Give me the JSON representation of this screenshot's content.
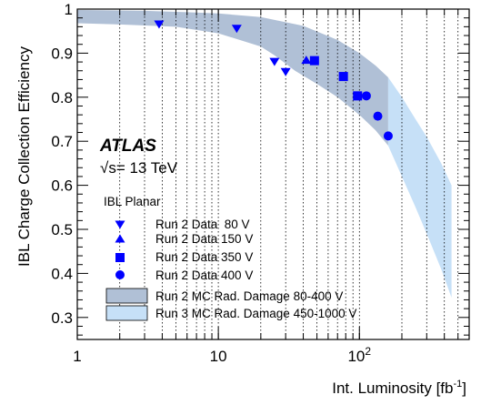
{
  "chart_data": {
    "type": "scatter",
    "x_scale": "log",
    "xlim": [
      1,
      600
    ],
    "ylim": [
      0.25,
      1.0
    ],
    "xlabel": "Int. Luminosity [fb",
    "xlabel_sup": "-1",
    "xlabel_end": "]",
    "ylabel": "IBL Charge Collection Efficiency",
    "x_ticks": [
      {
        "value": 1,
        "label": "1"
      },
      {
        "value": 10,
        "label": "10"
      },
      {
        "value": 100,
        "label": "10",
        "sup": "2"
      }
    ],
    "y_ticks": [
      {
        "value": 0.3,
        "label": "0.3"
      },
      {
        "value": 0.4,
        "label": "0.4"
      },
      {
        "value": 0.5,
        "label": "0.5"
      },
      {
        "value": 0.6,
        "label": "0.6"
      },
      {
        "value": 0.7,
        "label": "0.7"
      },
      {
        "value": 0.8,
        "label": "0.8"
      },
      {
        "value": 0.9,
        "label": "0.9"
      },
      {
        "value": 1.0,
        "label": "1"
      }
    ],
    "vertical_lines_x": [
      2,
      3,
      4,
      5,
      6,
      7,
      8,
      9,
      10,
      20,
      30,
      40,
      50,
      60,
      70,
      80,
      90,
      100,
      200,
      300,
      400,
      500
    ],
    "experiment_label": "ATLAS",
    "energy_label": "√s= 13 TeV",
    "legend_title": "IBL Planar",
    "series": [
      {
        "name": "Run 2 Data  80 V",
        "marker": "triangle-down",
        "color": "#0000ff",
        "points": [
          {
            "x": 3.8,
            "y": 0.965
          },
          {
            "x": 13.5,
            "y": 0.955
          },
          {
            "x": 25,
            "y": 0.88
          },
          {
            "x": 30,
            "y": 0.857
          }
        ]
      },
      {
        "name": "Run 2 Data 150 V",
        "marker": "triangle-up",
        "color": "#0000ff",
        "points": [
          {
            "x": 42,
            "y": 0.885
          }
        ]
      },
      {
        "name": "Run 2 Data 350 V",
        "marker": "square",
        "color": "#0000ff",
        "points": [
          {
            "x": 48,
            "y": 0.883
          },
          {
            "x": 77,
            "y": 0.847
          },
          {
            "x": 97,
            "y": 0.803
          }
        ]
      },
      {
        "name": "Run 2 Data 400 V",
        "marker": "circle",
        "color": "#0000ff",
        "points": [
          {
            "x": 112,
            "y": 0.803
          },
          {
            "x": 135,
            "y": 0.757
          },
          {
            "x": 160,
            "y": 0.712
          }
        ]
      }
    ],
    "bands": [
      {
        "name": "Run 2 MC Rad. Damage 80-400 V",
        "color": "#b0c0d6",
        "upper": [
          [
            1,
            0.998
          ],
          [
            3,
            0.996
          ],
          [
            6,
            0.993
          ],
          [
            10,
            0.99
          ],
          [
            20,
            0.982
          ],
          [
            40,
            0.962
          ],
          [
            70,
            0.93
          ],
          [
            100,
            0.9
          ],
          [
            130,
            0.872
          ],
          [
            160,
            0.845
          ]
        ],
        "lower": [
          [
            1,
            0.968
          ],
          [
            2,
            0.965
          ],
          [
            5,
            0.96
          ],
          [
            10,
            0.945
          ],
          [
            20,
            0.915
          ],
          [
            25,
            0.895
          ],
          [
            35,
            0.86
          ],
          [
            50,
            0.83
          ],
          [
            70,
            0.8
          ],
          [
            100,
            0.76
          ],
          [
            130,
            0.725
          ],
          [
            160,
            0.69
          ]
        ]
      },
      {
        "name": "Run 3 MC Rad. Damage 450-1000 V",
        "color": "#c6e0f7",
        "upper": [
          [
            160,
            0.845
          ],
          [
            200,
            0.8
          ],
          [
            250,
            0.75
          ],
          [
            300,
            0.71
          ],
          [
            380,
            0.65
          ],
          [
            450,
            0.6
          ]
        ],
        "lower": [
          [
            160,
            0.69
          ],
          [
            200,
            0.62
          ],
          [
            250,
            0.55
          ],
          [
            300,
            0.49
          ],
          [
            380,
            0.41
          ],
          [
            450,
            0.345
          ]
        ]
      }
    ],
    "legend_placement": "lower-left"
  }
}
